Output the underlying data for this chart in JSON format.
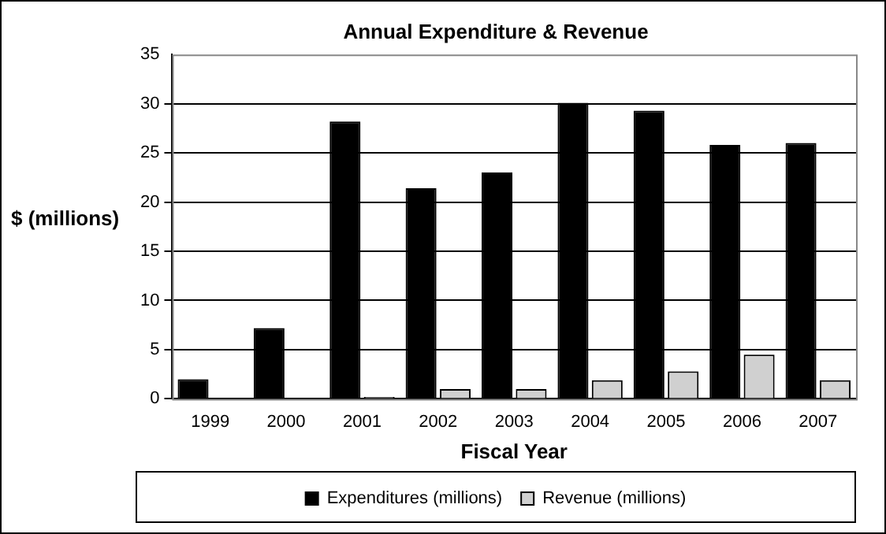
{
  "chart_data": {
    "type": "bar",
    "title": "Annual Expenditure & Revenue",
    "xlabel": "Fiscal Year",
    "ylabel": "$ (millions)",
    "categories": [
      "1999",
      "2000",
      "2001",
      "2002",
      "2003",
      "2004",
      "2005",
      "2006",
      "2007"
    ],
    "series": [
      {
        "name": "Expenditures (millions)",
        "color": "#000000",
        "values": [
          2.0,
          7.2,
          28.2,
          21.4,
          23.0,
          30.1,
          29.3,
          25.8,
          26.0
        ]
      },
      {
        "name": "Revenue (millions)",
        "color": "#d0d0d0",
        "values": [
          0,
          0,
          0.2,
          1.0,
          1.0,
          1.9,
          2.8,
          4.5,
          1.9
        ]
      }
    ],
    "ylim": [
      0,
      35
    ],
    "yticks": [
      0,
      5,
      10,
      15,
      20,
      25,
      30,
      35
    ],
    "grid": "y",
    "legend": "bottom"
  }
}
